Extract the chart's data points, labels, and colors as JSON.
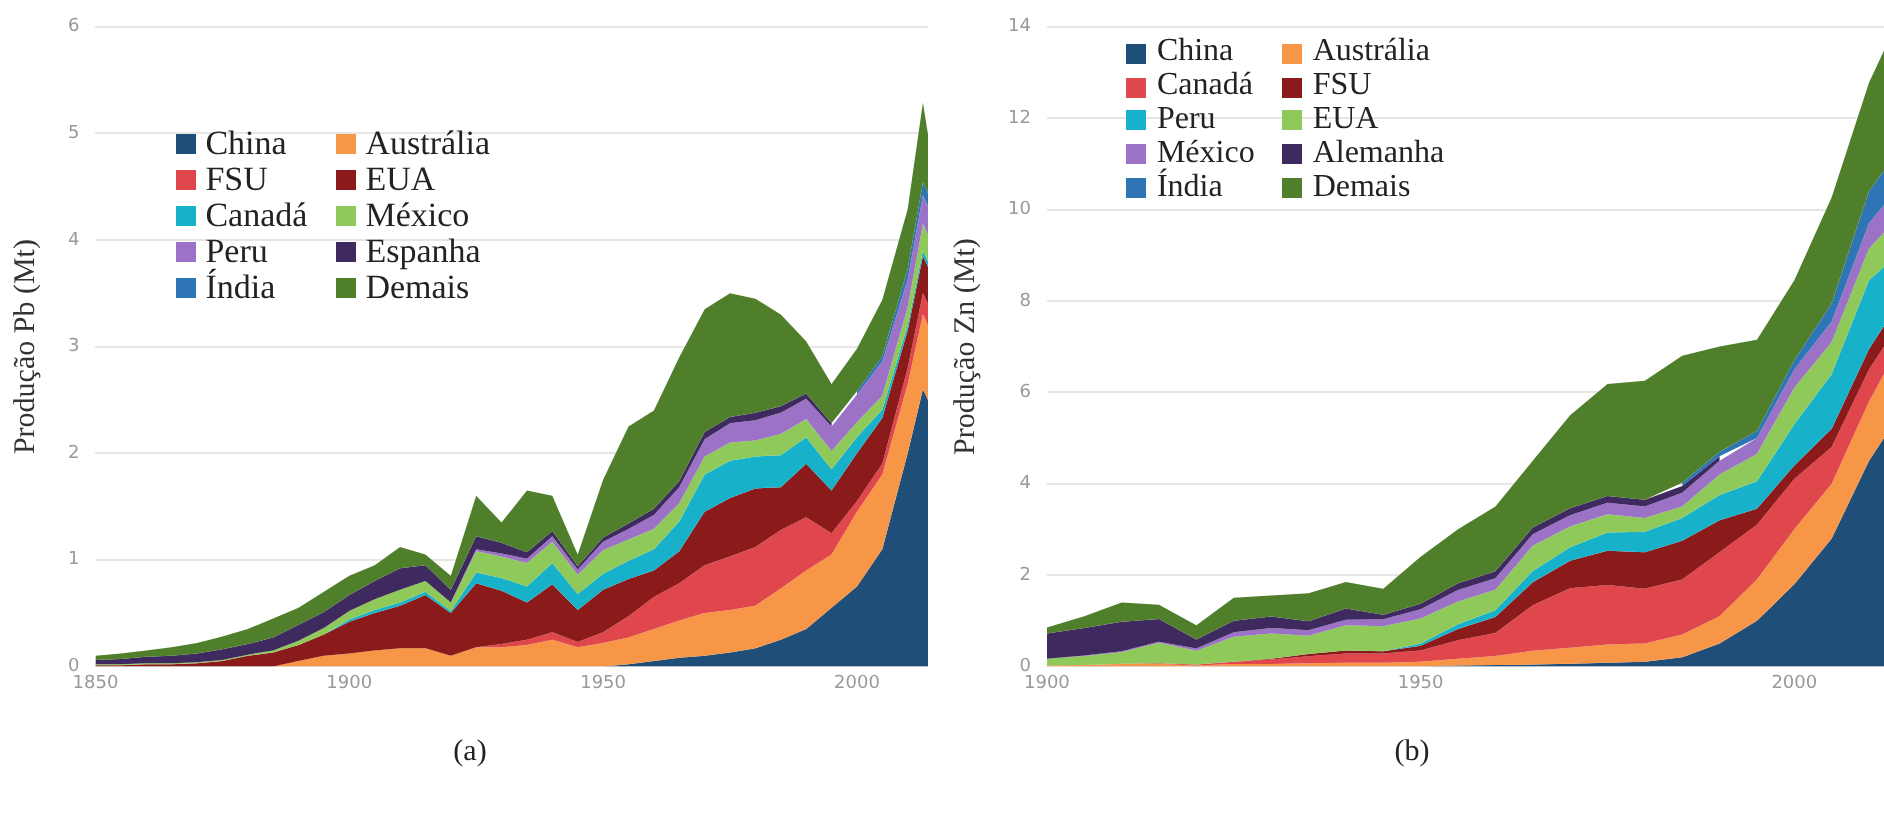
{
  "chart_data": [
    {
      "type": "area",
      "stacked": true,
      "ylabel": "Produção Pb (Mt)",
      "annotations": [
        "(a)"
      ],
      "grid": "y",
      "legend": "top left",
      "xlim": [
        1850,
        2014
      ],
      "xticks": [
        1850,
        1900,
        1950,
        2000
      ],
      "ylim": [
        0,
        6
      ],
      "yticks": [
        0,
        1,
        2,
        3,
        4,
        5,
        6
      ],
      "x": [
        1850,
        1855,
        1860,
        1865,
        1870,
        1875,
        1880,
        1885,
        1890,
        1895,
        1900,
        1905,
        1910,
        1915,
        1920,
        1925,
        1930,
        1935,
        1940,
        1945,
        1950,
        1955,
        1960,
        1965,
        1970,
        1975,
        1980,
        1985,
        1990,
        1995,
        2000,
        2005,
        2010,
        2013,
        2014
      ],
      "series": [
        {
          "name": "China",
          "color": "#1f4e79",
          "values": [
            0,
            0,
            0,
            0,
            0,
            0,
            0,
            0,
            0,
            0,
            0,
            0,
            0,
            0,
            0,
            0,
            0,
            0,
            0,
            0,
            0,
            0.02,
            0.05,
            0.08,
            0.1,
            0.13,
            0.17,
            0.25,
            0.35,
            0.55,
            0.75,
            1.1,
            2.0,
            2.6,
            2.5
          ]
        },
        {
          "name": "Austrália",
          "color": "#f79646",
          "values": [
            0,
            0,
            0,
            0,
            0,
            0,
            0,
            0,
            0.05,
            0.1,
            0.12,
            0.15,
            0.17,
            0.17,
            0.1,
            0.18,
            0.18,
            0.2,
            0.25,
            0.18,
            0.22,
            0.25,
            0.3,
            0.35,
            0.4,
            0.4,
            0.4,
            0.48,
            0.55,
            0.5,
            0.7,
            0.7,
            0.65,
            0.7,
            0.7
          ]
        },
        {
          "name": "FSU",
          "color": "#e0474c",
          "values": [
            0,
            0,
            0,
            0,
            0,
            0,
            0,
            0,
            0,
            0,
            0,
            0,
            0,
            0,
            0,
            0,
            0.03,
            0.05,
            0.07,
            0.05,
            0.1,
            0.2,
            0.3,
            0.35,
            0.45,
            0.5,
            0.55,
            0.55,
            0.5,
            0.2,
            0.1,
            0.1,
            0.15,
            0.2,
            0.2
          ]
        },
        {
          "name": "EUA",
          "color": "#8b1a1a",
          "values": [
            0.01,
            0.01,
            0.02,
            0.02,
            0.03,
            0.05,
            0.1,
            0.13,
            0.15,
            0.2,
            0.3,
            0.35,
            0.4,
            0.5,
            0.4,
            0.6,
            0.5,
            0.35,
            0.45,
            0.3,
            0.4,
            0.35,
            0.25,
            0.3,
            0.5,
            0.55,
            0.55,
            0.4,
            0.5,
            0.4,
            0.45,
            0.43,
            0.35,
            0.35,
            0.35
          ]
        },
        {
          "name": "Canadá",
          "color": "#17b2c9",
          "values": [
            0,
            0,
            0,
            0,
            0,
            0,
            0,
            0,
            0,
            0,
            0.02,
            0.03,
            0.03,
            0.03,
            0.02,
            0.1,
            0.12,
            0.15,
            0.2,
            0.15,
            0.15,
            0.17,
            0.2,
            0.28,
            0.35,
            0.35,
            0.3,
            0.3,
            0.25,
            0.2,
            0.15,
            0.08,
            0.05,
            0.05,
            0.05
          ]
        },
        {
          "name": "México",
          "color": "#8fc95a",
          "values": [
            0.01,
            0.01,
            0.01,
            0.01,
            0.01,
            0.01,
            0.01,
            0.02,
            0.04,
            0.06,
            0.08,
            0.1,
            0.12,
            0.1,
            0.08,
            0.2,
            0.2,
            0.22,
            0.2,
            0.18,
            0.22,
            0.2,
            0.19,
            0.17,
            0.17,
            0.17,
            0.15,
            0.2,
            0.17,
            0.17,
            0.14,
            0.13,
            0.17,
            0.25,
            0.25
          ]
        },
        {
          "name": "Peru",
          "color": "#9b72c6",
          "values": [
            0,
            0,
            0,
            0,
            0,
            0,
            0,
            0,
            0,
            0,
            0,
            0,
            0,
            0,
            0,
            0.02,
            0.03,
            0.04,
            0.05,
            0.05,
            0.08,
            0.1,
            0.13,
            0.15,
            0.16,
            0.18,
            0.19,
            0.2,
            0.19,
            0.23,
            0.26,
            0.32,
            0.26,
            0.27,
            0.27
          ]
        },
        {
          "name": "Espanha",
          "color": "#3e2a5e",
          "values": [
            0.04,
            0.05,
            0.06,
            0.07,
            0.08,
            0.1,
            0.1,
            0.12,
            0.15,
            0.15,
            0.15,
            0.17,
            0.2,
            0.15,
            0.12,
            0.12,
            0.1,
            0.06,
            0.05,
            0.03,
            0.04,
            0.05,
            0.06,
            0.06,
            0.07,
            0.06,
            0.07,
            0.06,
            0.05,
            0.03,
            null,
            null,
            null,
            null,
            null
          ]
        },
        {
          "name": "Índia",
          "color": "#2e75b6",
          "values": [
            null,
            null,
            null,
            null,
            null,
            null,
            null,
            null,
            null,
            null,
            null,
            null,
            null,
            null,
            null,
            null,
            null,
            null,
            null,
            null,
            null,
            null,
            null,
            null,
            null,
            null,
            null,
            null,
            null,
            null,
            0.03,
            0.05,
            0.1,
            0.12,
            0.12
          ]
        },
        {
          "name": "Demais",
          "color": "#4f7f2a",
          "values": [
            0.04,
            0.05,
            0.06,
            0.08,
            0.1,
            0.12,
            0.14,
            0.18,
            0.16,
            0.19,
            0.18,
            0.15,
            0.2,
            0.1,
            0.13,
            0.38,
            0.19,
            0.58,
            0.33,
            0.11,
            0.54,
            0.91,
            0.92,
            1.16,
            1.15,
            1.16,
            1.07,
            0.86,
            0.49,
            0.37,
            0.4,
            0.53,
            0.56,
            0.75,
            0.55
          ]
        }
      ]
    },
    {
      "type": "area",
      "stacked": true,
      "ylabel": "Produção Zn (Mt)",
      "annotations": [
        "(b)"
      ],
      "grid": "y",
      "legend": "top left",
      "xlim": [
        1900,
        2012
      ],
      "xticks": [
        1900,
        1950,
        2000
      ],
      "ylim": [
        0,
        14
      ],
      "yticks": [
        0,
        2,
        4,
        6,
        8,
        10,
        12,
        14
      ],
      "x": [
        1900,
        1905,
        1910,
        1915,
        1920,
        1925,
        1930,
        1935,
        1940,
        1945,
        1950,
        1955,
        1960,
        1965,
        1970,
        1975,
        1980,
        1985,
        1990,
        1995,
        2000,
        2005,
        2010,
        2012
      ],
      "series": [
        {
          "name": "China",
          "color": "#1f4e79",
          "values": [
            0,
            0,
            0,
            0,
            0,
            0,
            0,
            0,
            0,
            0,
            0,
            0.02,
            0.03,
            0.04,
            0.06,
            0.08,
            0.1,
            0.2,
            0.5,
            1.0,
            1.8,
            2.8,
            4.5,
            5.0
          ]
        },
        {
          "name": "Austrália",
          "color": "#f79646",
          "values": [
            0.02,
            0.03,
            0.05,
            0.05,
            0.02,
            0.05,
            0.05,
            0.07,
            0.08,
            0.08,
            0.1,
            0.15,
            0.2,
            0.3,
            0.35,
            0.4,
            0.4,
            0.5,
            0.6,
            0.9,
            1.2,
            1.2,
            1.3,
            1.4
          ]
        },
        {
          "name": "Canadá",
          "color": "#e0474c",
          "values": [
            0,
            0,
            0.01,
            0.02,
            0.02,
            0.05,
            0.1,
            0.15,
            0.2,
            0.2,
            0.25,
            0.4,
            0.5,
            1.0,
            1.3,
            1.3,
            1.2,
            1.2,
            1.4,
            1.2,
            1.1,
            0.8,
            0.7,
            0.6
          ]
        },
        {
          "name": "FSU",
          "color": "#8b1a1a",
          "values": [
            0,
            0,
            0,
            0,
            0,
            0,
            0.02,
            0.05,
            0.07,
            0.05,
            0.1,
            0.25,
            0.35,
            0.5,
            0.6,
            0.75,
            0.8,
            0.85,
            0.7,
            0.35,
            0.3,
            0.4,
            0.45,
            0.45
          ]
        },
        {
          "name": "Peru",
          "color": "#17b2c9",
          "values": [
            0,
            0,
            0,
            0,
            0,
            0,
            0,
            0,
            0,
            0,
            0.05,
            0.1,
            0.15,
            0.25,
            0.3,
            0.4,
            0.45,
            0.5,
            0.55,
            0.6,
            0.9,
            1.2,
            1.5,
            1.3
          ]
        },
        {
          "name": "EUA",
          "color": "#8fc95a",
          "values": [
            0.15,
            0.2,
            0.25,
            0.45,
            0.3,
            0.55,
            0.55,
            0.4,
            0.55,
            0.55,
            0.55,
            0.5,
            0.45,
            0.55,
            0.45,
            0.4,
            0.3,
            0.25,
            0.45,
            0.6,
            0.8,
            0.7,
            0.7,
            0.75
          ]
        },
        {
          "name": "México",
          "color": "#9b72c6",
          "values": [
            0,
            0.01,
            0.02,
            0.02,
            0.05,
            0.1,
            0.12,
            0.12,
            0.12,
            0.15,
            0.2,
            0.25,
            0.25,
            0.25,
            0.25,
            0.25,
            0.25,
            0.3,
            0.3,
            0.35,
            0.4,
            0.45,
            0.55,
            0.6
          ]
        },
        {
          "name": "Alemanha",
          "color": "#3e2a5e",
          "values": [
            0.55,
            0.6,
            0.65,
            0.5,
            0.2,
            0.25,
            0.25,
            0.2,
            0.25,
            0.1,
            0.12,
            0.15,
            0.15,
            0.15,
            0.15,
            0.15,
            0.15,
            0.15,
            0.1,
            null,
            null,
            null,
            null,
            null
          ]
        },
        {
          "name": "Índia",
          "color": "#2e75b6",
          "values": [
            null,
            null,
            null,
            null,
            null,
            null,
            null,
            null,
            null,
            null,
            null,
            null,
            null,
            null,
            null,
            null,
            null,
            0.07,
            0.1,
            0.15,
            0.2,
            0.4,
            0.7,
            0.75
          ]
        },
        {
          "name": "Demais",
          "color": "#4f7f2a",
          "values": [
            0.13,
            0.26,
            0.42,
            0.31,
            0.31,
            0.5,
            0.46,
            0.61,
            0.58,
            0.57,
            1.03,
            1.18,
            1.42,
            1.46,
            2.04,
            2.45,
            2.6,
            2.78,
            2.3,
            2.0,
            1.75,
            2.32,
            2.38,
            2.63
          ]
        }
      ]
    }
  ]
}
